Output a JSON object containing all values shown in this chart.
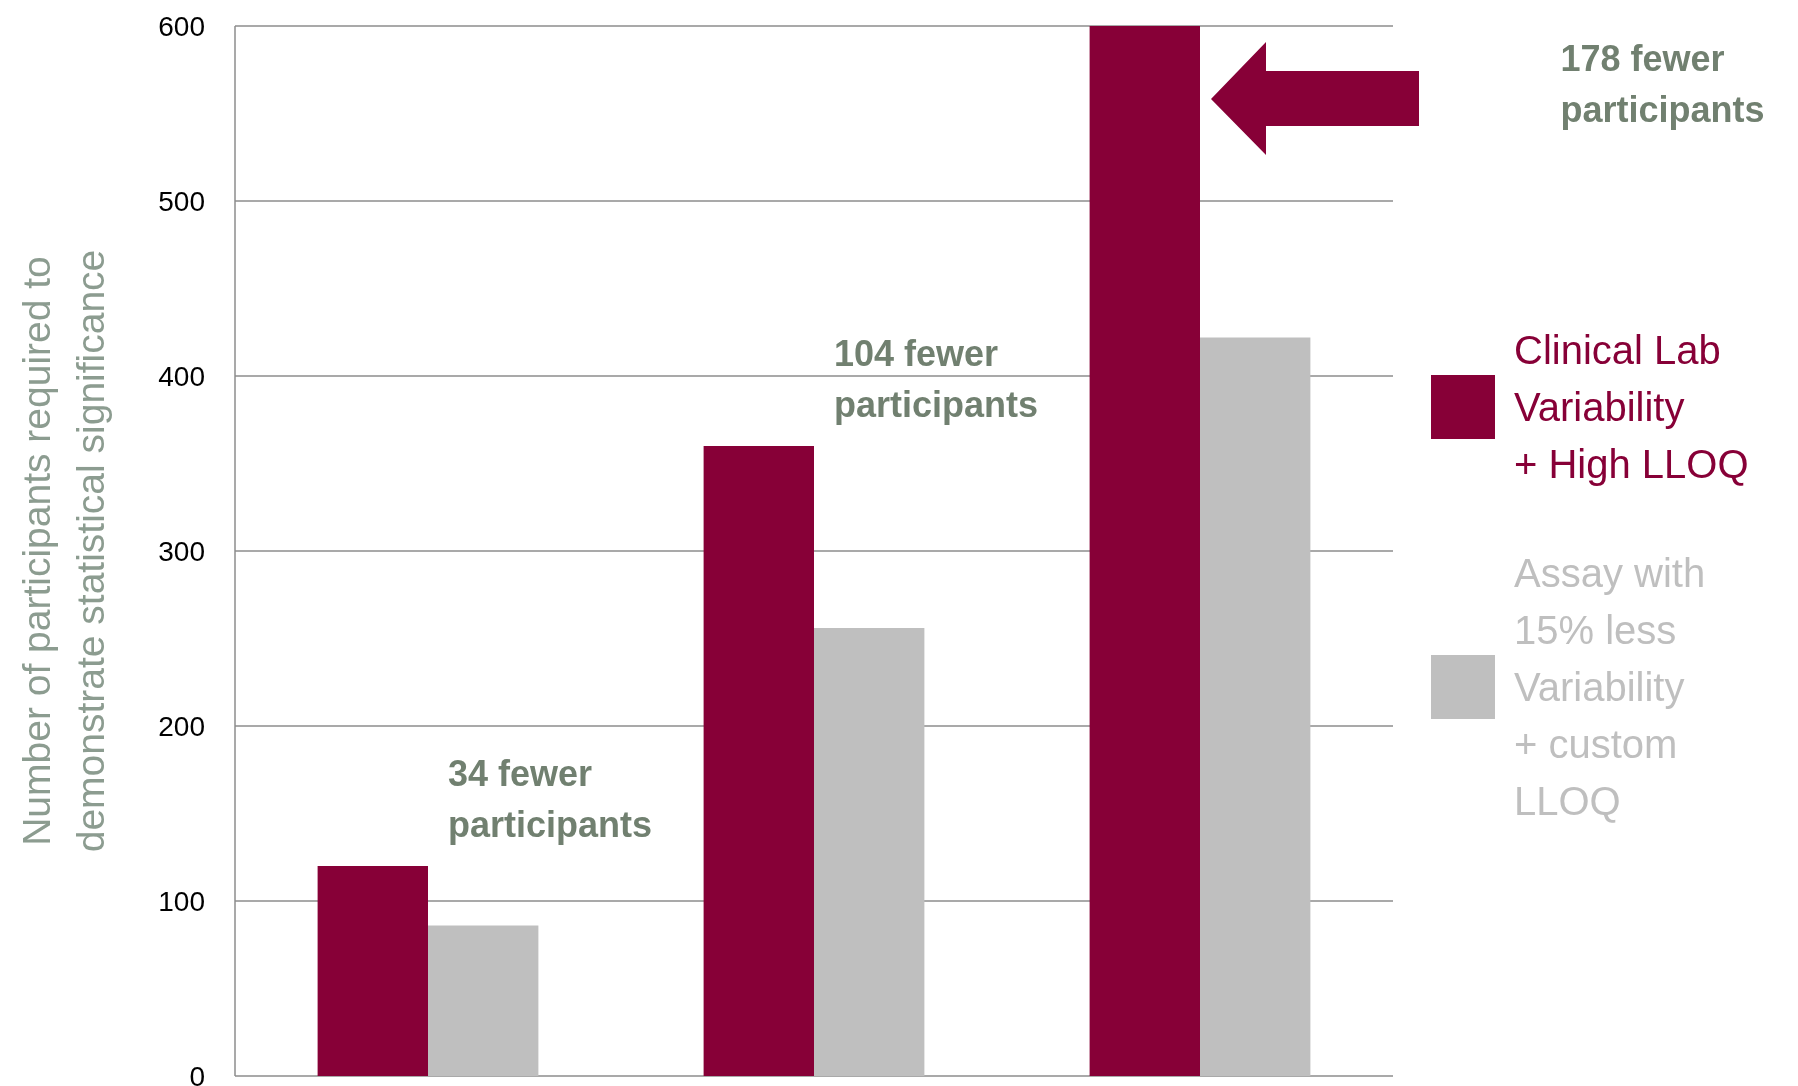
{
  "chart_data": {
    "type": "bar",
    "ylabel": "Number of participants required to demonstrate statistical significance",
    "categories": [
      null,
      null,
      null
    ],
    "series": [
      {
        "name": "Clinical Lab Variability + High LLOQ",
        "color": "#870037",
        "values": [
          120,
          360,
          600
        ]
      },
      {
        "name": "Assay with 15% less Variability + custom LLOQ",
        "color": "#bfbfbf",
        "values": [
          86,
          256,
          422
        ]
      }
    ],
    "ylim": [
      0,
      600
    ],
    "yticks": [
      0,
      100,
      200,
      300,
      400,
      500,
      600
    ],
    "grid": "y",
    "legend": "right",
    "annotations": [
      "34 fewer participants",
      "104 fewer participants",
      "178 fewer participants"
    ]
  }
}
